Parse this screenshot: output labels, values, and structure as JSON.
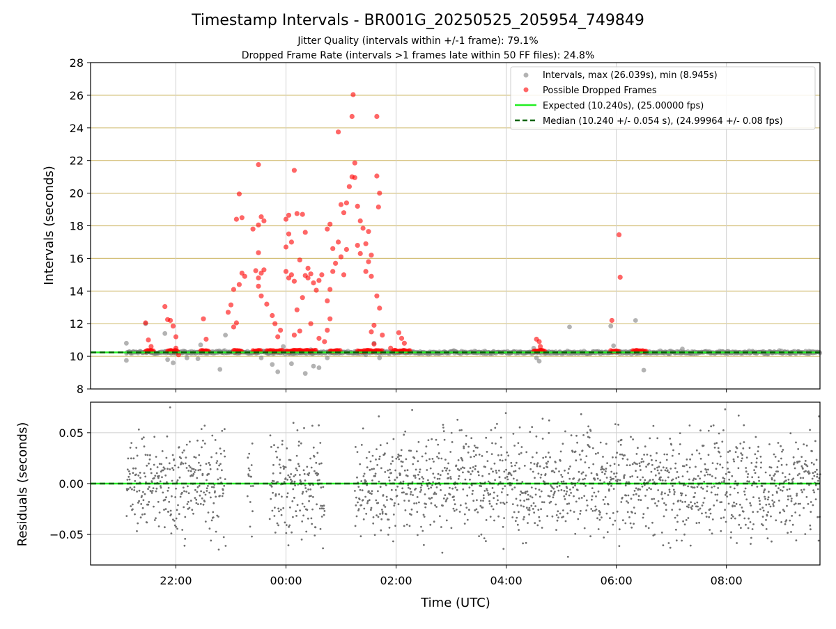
{
  "chart_data": [
    {
      "type": "scatter",
      "title": "Timestamp Intervals - BR001G_20250525_205954_749849",
      "subtitles": [
        "Jitter Quality (intervals within +/-1 frame): 79.1%",
        "Dropped Frame Rate (intervals >1 frames late within 50 FF files): 24.8%"
      ],
      "xlabel": "",
      "ylabel": "Intervals (seconds)",
      "xlim_hours": [
        -3.55,
        9.7
      ],
      "ylim": [
        8,
        28
      ],
      "yticks": [
        8,
        10,
        12,
        14,
        16,
        18,
        20,
        22,
        24,
        26,
        28
      ],
      "hgrid_color": "#d4c07a",
      "legend_placement": "top-right",
      "series": [
        {
          "name": "Intervals, max (26.039s), min (8.945s)",
          "kind": "scatter",
          "color": "#808080",
          "baseline_value": 10.24,
          "x_range_hours": [
            -2.9,
            9.7
          ],
          "outliers": [
            [
              -2.9,
              9.75
            ],
            [
              -2.9,
              10.8
            ],
            [
              -2.55,
              12.0
            ],
            [
              -2.2,
              11.4
            ],
            [
              -2.15,
              9.8
            ],
            [
              -2.05,
              9.6
            ],
            [
              -1.8,
              9.9
            ],
            [
              -1.6,
              9.85
            ],
            [
              -1.55,
              10.7
            ],
            [
              -1.2,
              9.2
            ],
            [
              -1.1,
              11.3
            ],
            [
              -0.45,
              9.9
            ],
            [
              -0.25,
              9.5
            ],
            [
              -0.15,
              9.05
            ],
            [
              -0.05,
              10.6
            ],
            [
              0.1,
              9.55
            ],
            [
              0.35,
              8.95
            ],
            [
              0.45,
              10.4
            ],
            [
              0.5,
              9.4
            ],
            [
              0.6,
              9.3
            ],
            [
              0.75,
              9.9
            ],
            [
              1.25,
              10.3
            ],
            [
              1.45,
              10.1
            ],
            [
              1.6,
              10.8
            ],
            [
              1.7,
              9.9
            ],
            [
              4.5,
              10.5
            ],
            [
              4.55,
              9.9
            ],
            [
              4.6,
              9.7
            ],
            [
              5.15,
              11.8
            ],
            [
              5.9,
              11.85
            ],
            [
              5.95,
              10.65
            ],
            [
              6.35,
              12.2
            ],
            [
              6.5,
              9.15
            ],
            [
              7.2,
              10.45
            ]
          ]
        },
        {
          "name": "Possible Dropped Frames",
          "kind": "scatter",
          "color": "#ff0000",
          "points": [
            [
              -2.55,
              12.05
            ],
            [
              -2.5,
              11.0
            ],
            [
              -2.45,
              10.6
            ],
            [
              -2.2,
              13.05
            ],
            [
              -2.15,
              12.25
            ],
            [
              -2.1,
              12.2
            ],
            [
              -2.05,
              11.85
            ],
            [
              -2.0,
              10.5
            ],
            [
              -2.0,
              11.2
            ],
            [
              -1.95,
              10.1
            ],
            [
              -1.5,
              12.3
            ],
            [
              -1.45,
              11.05
            ],
            [
              -1.05,
              12.7
            ],
            [
              -1.0,
              13.15
            ],
            [
              -0.95,
              11.8
            ],
            [
              -0.9,
              12.05
            ],
            [
              -0.85,
              14.4
            ],
            [
              -0.8,
              15.1
            ],
            [
              -0.75,
              14.9
            ],
            [
              -0.95,
              14.1
            ],
            [
              -0.9,
              18.4
            ],
            [
              -0.85,
              19.95
            ],
            [
              -0.8,
              18.5
            ],
            [
              -0.55,
              15.25
            ],
            [
              -0.5,
              14.8
            ],
            [
              -0.5,
              14.3
            ],
            [
              -0.45,
              15.1
            ],
            [
              -0.4,
              15.3
            ],
            [
              -0.6,
              17.8
            ],
            [
              -0.5,
              18.05
            ],
            [
              -0.45,
              18.55
            ],
            [
              -0.4,
              18.3
            ],
            [
              -0.5,
              21.75
            ],
            [
              -0.5,
              16.35
            ],
            [
              -0.45,
              13.7
            ],
            [
              -0.35,
              13.2
            ],
            [
              -0.25,
              12.5
            ],
            [
              -0.2,
              12.0
            ],
            [
              -0.15,
              11.2
            ],
            [
              -0.1,
              11.6
            ],
            [
              0.0,
              16.7
            ],
            [
              0.05,
              17.5
            ],
            [
              0.0,
              18.4
            ],
            [
              0.05,
              18.65
            ],
            [
              0.1,
              17.0
            ],
            [
              0.0,
              15.2
            ],
            [
              0.05,
              14.8
            ],
            [
              0.1,
              15.0
            ],
            [
              0.15,
              14.6
            ],
            [
              0.15,
              21.4
            ],
            [
              0.2,
              18.75
            ],
            [
              0.25,
              15.9
            ],
            [
              0.3,
              18.7
            ],
            [
              0.35,
              17.6
            ],
            [
              0.35,
              14.95
            ],
            [
              0.4,
              15.4
            ],
            [
              0.4,
              14.8
            ],
            [
              0.45,
              15.05
            ],
            [
              0.5,
              14.5
            ],
            [
              0.55,
              14.05
            ],
            [
              0.6,
              14.65
            ],
            [
              0.65,
              15.0
            ],
            [
              0.3,
              13.6
            ],
            [
              0.2,
              12.85
            ],
            [
              0.15,
              11.3
            ],
            [
              0.25,
              11.55
            ],
            [
              0.45,
              12.0
            ],
            [
              0.6,
              11.1
            ],
            [
              0.7,
              10.9
            ],
            [
              0.75,
              11.6
            ],
            [
              0.8,
              12.3
            ],
            [
              0.75,
              13.4
            ],
            [
              0.8,
              14.1
            ],
            [
              0.85,
              15.2
            ],
            [
              0.75,
              17.8
            ],
            [
              0.8,
              18.1
            ],
            [
              0.85,
              16.6
            ],
            [
              0.9,
              15.7
            ],
            [
              0.95,
              17.0
            ],
            [
              1.0,
              16.1
            ],
            [
              1.05,
              15.0
            ],
            [
              1.1,
              16.55
            ],
            [
              0.95,
              23.75
            ],
            [
              1.0,
              19.3
            ],
            [
              1.05,
              18.8
            ],
            [
              1.1,
              19.4
            ],
            [
              1.15,
              20.4
            ],
            [
              1.2,
              21.0
            ],
            [
              1.2,
              24.7
            ],
            [
              1.22,
              26.04
            ],
            [
              1.25,
              21.85
            ],
            [
              1.25,
              20.95
            ],
            [
              1.3,
              19.2
            ],
            [
              1.35,
              18.3
            ],
            [
              1.4,
              17.85
            ],
            [
              1.45,
              16.9
            ],
            [
              1.5,
              17.65
            ],
            [
              1.5,
              15.8
            ],
            [
              1.55,
              16.2
            ],
            [
              1.55,
              14.9
            ],
            [
              1.45,
              15.2
            ],
            [
              1.35,
              16.3
            ],
            [
              1.3,
              16.8
            ],
            [
              1.65,
              24.7
            ],
            [
              1.65,
              21.05
            ],
            [
              1.7,
              20.0
            ],
            [
              1.68,
              19.15
            ],
            [
              1.55,
              11.5
            ],
            [
              1.6,
              11.9
            ],
            [
              1.6,
              10.75
            ],
            [
              1.65,
              13.7
            ],
            [
              1.7,
              12.95
            ],
            [
              1.75,
              11.3
            ],
            [
              1.9,
              10.5
            ],
            [
              2.05,
              11.45
            ],
            [
              2.1,
              11.1
            ],
            [
              2.15,
              10.8
            ],
            [
              4.55,
              11.05
            ],
            [
              4.6,
              10.9
            ],
            [
              4.62,
              10.6
            ],
            [
              5.92,
              12.2
            ],
            [
              6.05,
              17.45
            ],
            [
              6.07,
              14.85
            ]
          ],
          "baseline_clusters": [
            [
              -2.55,
              -2.4
            ],
            [
              -2.15,
              -1.95
            ],
            [
              -1.55,
              -1.4
            ],
            [
              -0.95,
              -0.8
            ],
            [
              -0.6,
              -0.45
            ],
            [
              -0.35,
              -0.05
            ],
            [
              0.0,
              0.55
            ],
            [
              0.8,
              1.0
            ],
            [
              1.3,
              1.75
            ],
            [
              1.95,
              2.25
            ],
            [
              4.5,
              4.7
            ],
            [
              5.9,
              6.05
            ],
            [
              6.3,
              6.55
            ]
          ]
        },
        {
          "name": "Expected (10.240s), (25.00000 fps)",
          "kind": "line",
          "y": 10.24,
          "color": "#22ee22",
          "style": "solid"
        },
        {
          "name": "Median (10.240 +/- 0.054 s), (24.99964 +/- 0.08 fps)",
          "kind": "line",
          "y": 10.24,
          "color": "#006400",
          "style": "dashed"
        }
      ]
    },
    {
      "type": "scatter",
      "xlabel": "Time (UTC)",
      "ylabel": "Residuals (seconds)",
      "ylim": [
        -0.08,
        0.08
      ],
      "yticks": [
        0.05,
        0.0,
        -0.05
      ],
      "ytick_labels": [
        "0.05",
        "0.00",
        "−0.05"
      ],
      "xticks_hours": [
        -2,
        0,
        2,
        4,
        6,
        8
      ],
      "xtick_labels": [
        "22:00",
        "00:00",
        "02:00",
        "04:00",
        "06:00",
        "08:00"
      ],
      "grid": true,
      "series": [
        {
          "kind": "scatter",
          "color": "#707070",
          "x_segments_hours": [
            [
              -2.9,
              -1.1
            ],
            [
              -0.7,
              -0.6
            ],
            [
              -0.3,
              0.7
            ],
            [
              1.25,
              9.7
            ]
          ],
          "spread": 0.025,
          "max_abs": 0.08
        },
        {
          "kind": "line",
          "y": 0.0,
          "color": "#22ee22",
          "style": "solid"
        },
        {
          "kind": "line",
          "y": 0.0,
          "color": "#006400",
          "style": "dashed"
        }
      ]
    }
  ]
}
